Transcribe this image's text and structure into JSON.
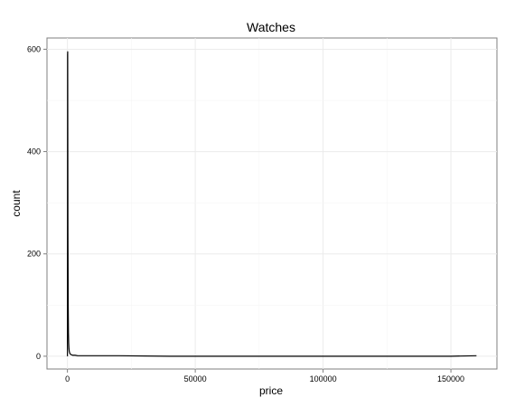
{
  "chart_data": {
    "type": "line",
    "title": "Watches",
    "xlabel": "price",
    "ylabel": "count",
    "xlim": [
      -8000,
      168000
    ],
    "ylim": [
      -25,
      622
    ],
    "x_ticks": [
      0,
      50000,
      100000,
      150000
    ],
    "y_ticks": [
      0,
      200,
      400,
      600
    ],
    "x_tick_labels": [
      "0",
      "50000",
      "100000",
      "150000"
    ],
    "y_tick_labels": [
      "0",
      "200",
      "400",
      "600"
    ],
    "grid": true,
    "legend": "none",
    "series": [
      {
        "color": "#000000",
        "x": [
          0,
          50,
          100,
          200,
          300,
          400,
          500,
          600,
          700,
          800,
          1000,
          1200,
          1500,
          2000,
          2500,
          3000,
          4000,
          5000,
          10000,
          20000,
          40000,
          80000,
          120000,
          150000,
          160000
        ],
        "y": [
          0,
          590,
          595,
          240,
          100,
          45,
          25,
          15,
          10,
          8,
          5,
          4,
          3,
          2,
          2,
          2,
          1,
          1,
          1,
          1,
          0,
          0,
          0,
          0,
          1
        ]
      }
    ]
  }
}
